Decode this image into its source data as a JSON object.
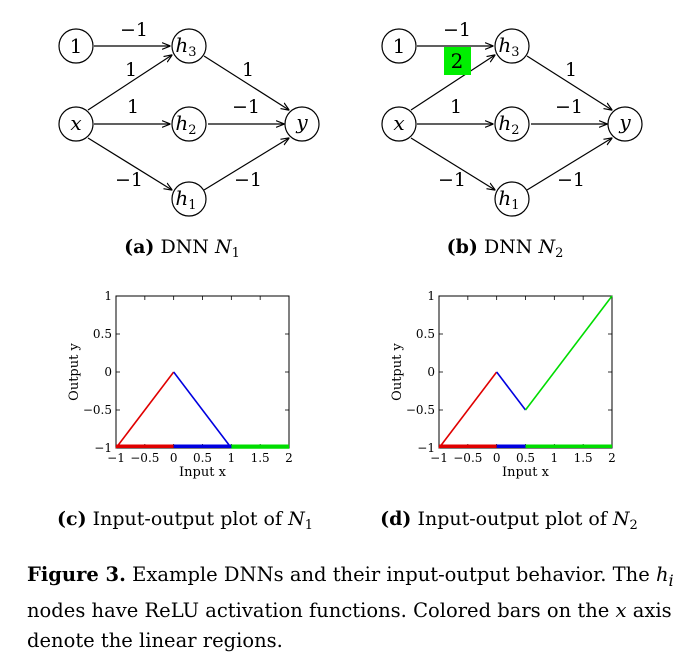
{
  "figure": {
    "networks": [
      {
        "nodes": {
          "one": "1",
          "x": "x",
          "h3": "h",
          "h3_sub": "3",
          "h2": "h",
          "h2_sub": "2",
          "h1": "h",
          "h1_sub": "1",
          "y": "y"
        },
        "weights": {
          "one_h3": "−1",
          "x_h3": "1",
          "x_h2": "1",
          "x_h1": "−1",
          "h3_y": "1",
          "h2_y": "−1",
          "h1_y": "−1"
        },
        "subcaption": {
          "label": "(a)",
          "text": "DNN ",
          "var": "N",
          "sub": "1"
        }
      },
      {
        "nodes": {
          "one": "1",
          "x": "x",
          "h3": "h",
          "h3_sub": "3",
          "h2": "h",
          "h2_sub": "2",
          "h1": "h",
          "h1_sub": "1",
          "y": "y"
        },
        "weights": {
          "one_h3": "−1",
          "x_h2": "1",
          "x_h1": "−1",
          "h3_y": "1",
          "h2_y": "−1",
          "h1_y": "−1"
        },
        "highlight_weight": {
          "value": "2",
          "color": "#00ee00"
        },
        "subcaption": {
          "label": "(b)",
          "text": "DNN ",
          "var": "N",
          "sub": "2"
        }
      }
    ],
    "plots": [
      {
        "subcaption": {
          "label": "(c)",
          "text": "Input-output plot of ",
          "var": "N",
          "sub": "1"
        }
      },
      {
        "subcaption": {
          "label": "(d)",
          "text": "Input-output plot of ",
          "var": "N",
          "sub": "2"
        }
      }
    ],
    "caption": {
      "label": "Figure 3.",
      "text1": " Example DNNs and their input-output behavior. The ",
      "var": "h",
      "sub": "i",
      "text2": " nodes have ReLU activation functions. Colored bars on the ",
      "var_x": "x",
      "text3": " axis denote the linear regions."
    }
  },
  "chart_data": [
    {
      "type": "line",
      "xlabel": "Input x",
      "ylabel": "Output y",
      "xlim": [
        -1,
        2
      ],
      "ylim": [
        -1,
        1
      ],
      "xticks": [
        "−1",
        "−0.5",
        "0",
        "0.5",
        "1",
        "1.5",
        "2"
      ],
      "yticks": [
        "−1",
        "−0.5",
        "0",
        "0.5",
        "1"
      ],
      "series": [
        {
          "color": "#e00000",
          "x": [
            -1,
            0
          ],
          "y": [
            -1,
            0
          ]
        },
        {
          "color": "#0000e0",
          "x": [
            0,
            1
          ],
          "y": [
            0,
            -1
          ]
        },
        {
          "color": "#00dd00",
          "x": [
            1,
            2
          ],
          "y": [
            -1,
            -1
          ]
        }
      ],
      "regions": [
        {
          "color": "#e00000",
          "x": [
            -1,
            0
          ]
        },
        {
          "color": "#0000e0",
          "x": [
            0,
            1
          ]
        },
        {
          "color": "#00dd00",
          "x": [
            1,
            2
          ]
        }
      ]
    },
    {
      "type": "line",
      "xlabel": "Input x",
      "ylabel": "Output y",
      "xlim": [
        -1,
        2
      ],
      "ylim": [
        -1,
        1
      ],
      "xticks": [
        "−1",
        "−0.5",
        "0",
        "0.5",
        "1",
        "1.5",
        "2"
      ],
      "yticks": [
        "−1",
        "−0.5",
        "0",
        "0.5",
        "1"
      ],
      "series": [
        {
          "color": "#e00000",
          "x": [
            -1,
            0
          ],
          "y": [
            -1,
            0
          ]
        },
        {
          "color": "#0000e0",
          "x": [
            0,
            0.5
          ],
          "y": [
            0,
            -0.5
          ]
        },
        {
          "color": "#00dd00",
          "x": [
            0.5,
            2
          ],
          "y": [
            -0.5,
            1
          ]
        }
      ],
      "regions": [
        {
          "color": "#e00000",
          "x": [
            -1,
            0
          ]
        },
        {
          "color": "#0000e0",
          "x": [
            0,
            0.5
          ]
        },
        {
          "color": "#00dd00",
          "x": [
            0.5,
            2
          ]
        }
      ]
    }
  ]
}
